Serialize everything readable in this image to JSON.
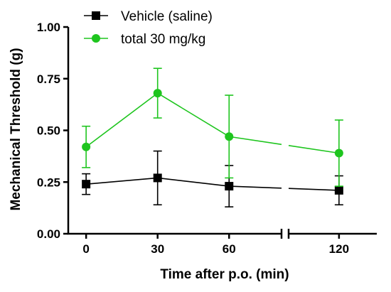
{
  "chart_data": {
    "type": "line",
    "xlabel": "Time after p.o. (min)",
    "ylabel": "Mechanical Threshold (g)",
    "x_ticks": [
      0,
      30,
      60,
      120
    ],
    "y_ticks": [
      "0.00",
      "0.25",
      "0.50",
      "0.75",
      "1.00"
    ],
    "ylim": [
      0,
      1
    ],
    "x_axis_break": "between 60 and 120",
    "legend_position": "top-left",
    "series": [
      {
        "name": "Vehicle (saline)",
        "color": "#000000",
        "marker": "square",
        "points": [
          {
            "x": 0,
            "y": 0.24,
            "err": 0.05
          },
          {
            "x": 30,
            "y": 0.27,
            "err": 0.13
          },
          {
            "x": 60,
            "y": 0.23,
            "err": 0.1
          },
          {
            "x": 120,
            "y": 0.21,
            "err": 0.07
          }
        ]
      },
      {
        "name": "total 30 mg/kg",
        "color": "#1ec51e",
        "marker": "circle",
        "points": [
          {
            "x": 0,
            "y": 0.42,
            "err": 0.1
          },
          {
            "x": 30,
            "y": 0.68,
            "err": 0.12
          },
          {
            "x": 60,
            "y": 0.47,
            "err": 0.2
          },
          {
            "x": 120,
            "y": 0.39,
            "err": 0.16
          }
        ]
      }
    ]
  }
}
